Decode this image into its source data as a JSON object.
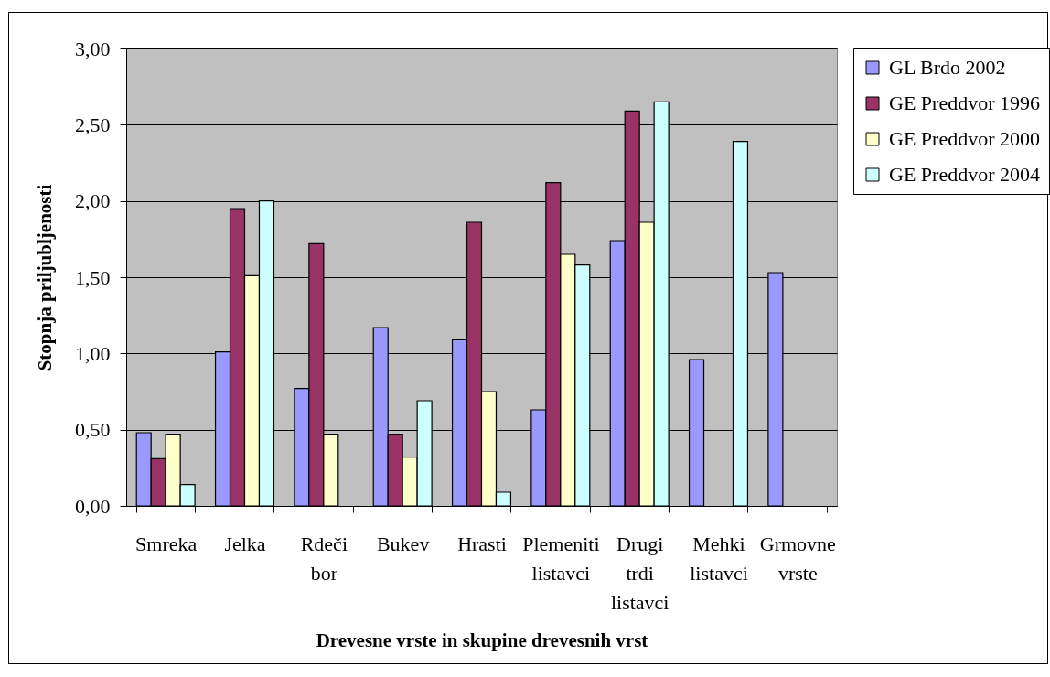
{
  "chart_data": {
    "type": "bar",
    "xlabel": "Drevesne vrste in skupine drevesnih vrst",
    "ylabel": "Stopnja priljubljenosti",
    "categories": [
      "Smreka",
      "Jelka",
      "Rdeči bor",
      "Bukev",
      "Hrasti",
      "Plemeniti listavci",
      "Drugi trdi listavci",
      "Mehki listavci",
      "Grmovne vrste"
    ],
    "series": [
      {
        "name": "GL Brdo 2002",
        "color": "#9999ff",
        "values": [
          0.48,
          1.01,
          0.77,
          1.17,
          1.09,
          0.63,
          1.74,
          0.96,
          1.53
        ]
      },
      {
        "name": "GE Preddvor 1996",
        "color": "#993366",
        "values": [
          0.31,
          1.95,
          1.72,
          0.47,
          1.86,
          2.12,
          2.59,
          null,
          null
        ]
      },
      {
        "name": "GE Preddvor 2000",
        "color": "#ffffcc",
        "values": [
          0.47,
          1.51,
          0.47,
          0.32,
          0.75,
          1.65,
          1.86,
          null,
          null
        ]
      },
      {
        "name": "GE Preddvor 2004",
        "color": "#ccffff",
        "values": [
          0.14,
          2.0,
          null,
          0.69,
          0.09,
          1.58,
          2.65,
          2.39,
          null
        ]
      }
    ],
    "ylim": [
      0,
      3
    ],
    "yticks": [
      {
        "value": 0,
        "label": "0,00"
      },
      {
        "value": 0.5,
        "label": "0,50"
      },
      {
        "value": 1,
        "label": "1,00"
      },
      {
        "value": 1.5,
        "label": "1,50"
      },
      {
        "value": 2,
        "label": "2,00"
      },
      {
        "value": 2.5,
        "label": "2,50"
      },
      {
        "value": 3,
        "label": "3,00"
      }
    ],
    "grid": "y",
    "legend": "right"
  }
}
